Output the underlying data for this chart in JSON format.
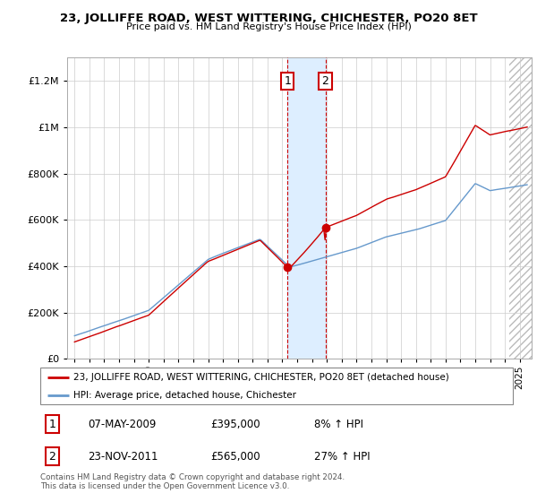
{
  "title1": "23, JOLLIFFE ROAD, WEST WITTERING, CHICHESTER, PO20 8ET",
  "title2": "Price paid vs. HM Land Registry's House Price Index (HPI)",
  "legend_line1": "23, JOLLIFFE ROAD, WEST WITTERING, CHICHESTER, PO20 8ET (detached house)",
  "legend_line2": "HPI: Average price, detached house, Chichester",
  "sale1_date": "07-MAY-2009",
  "sale1_price": "£395,000",
  "sale1_hpi": "8% ↑ HPI",
  "sale2_date": "23-NOV-2011",
  "sale2_price": "£565,000",
  "sale2_hpi": "27% ↑ HPI",
  "footer": "Contains HM Land Registry data © Crown copyright and database right 2024.\nThis data is licensed under the Open Government Licence v3.0.",
  "red_color": "#cc0000",
  "blue_color": "#6699cc",
  "shading_color": "#ddeeff",
  "background_color": "#ffffff",
  "ylim": [
    0,
    1300000
  ],
  "yticks": [
    0,
    200000,
    400000,
    600000,
    800000,
    1000000,
    1200000
  ],
  "sale1_year": 2009.35,
  "sale2_year": 2011.9,
  "sale1_price_val": 395000,
  "sale2_price_val": 565000,
  "xmin": 1994.5,
  "xmax": 2025.8
}
